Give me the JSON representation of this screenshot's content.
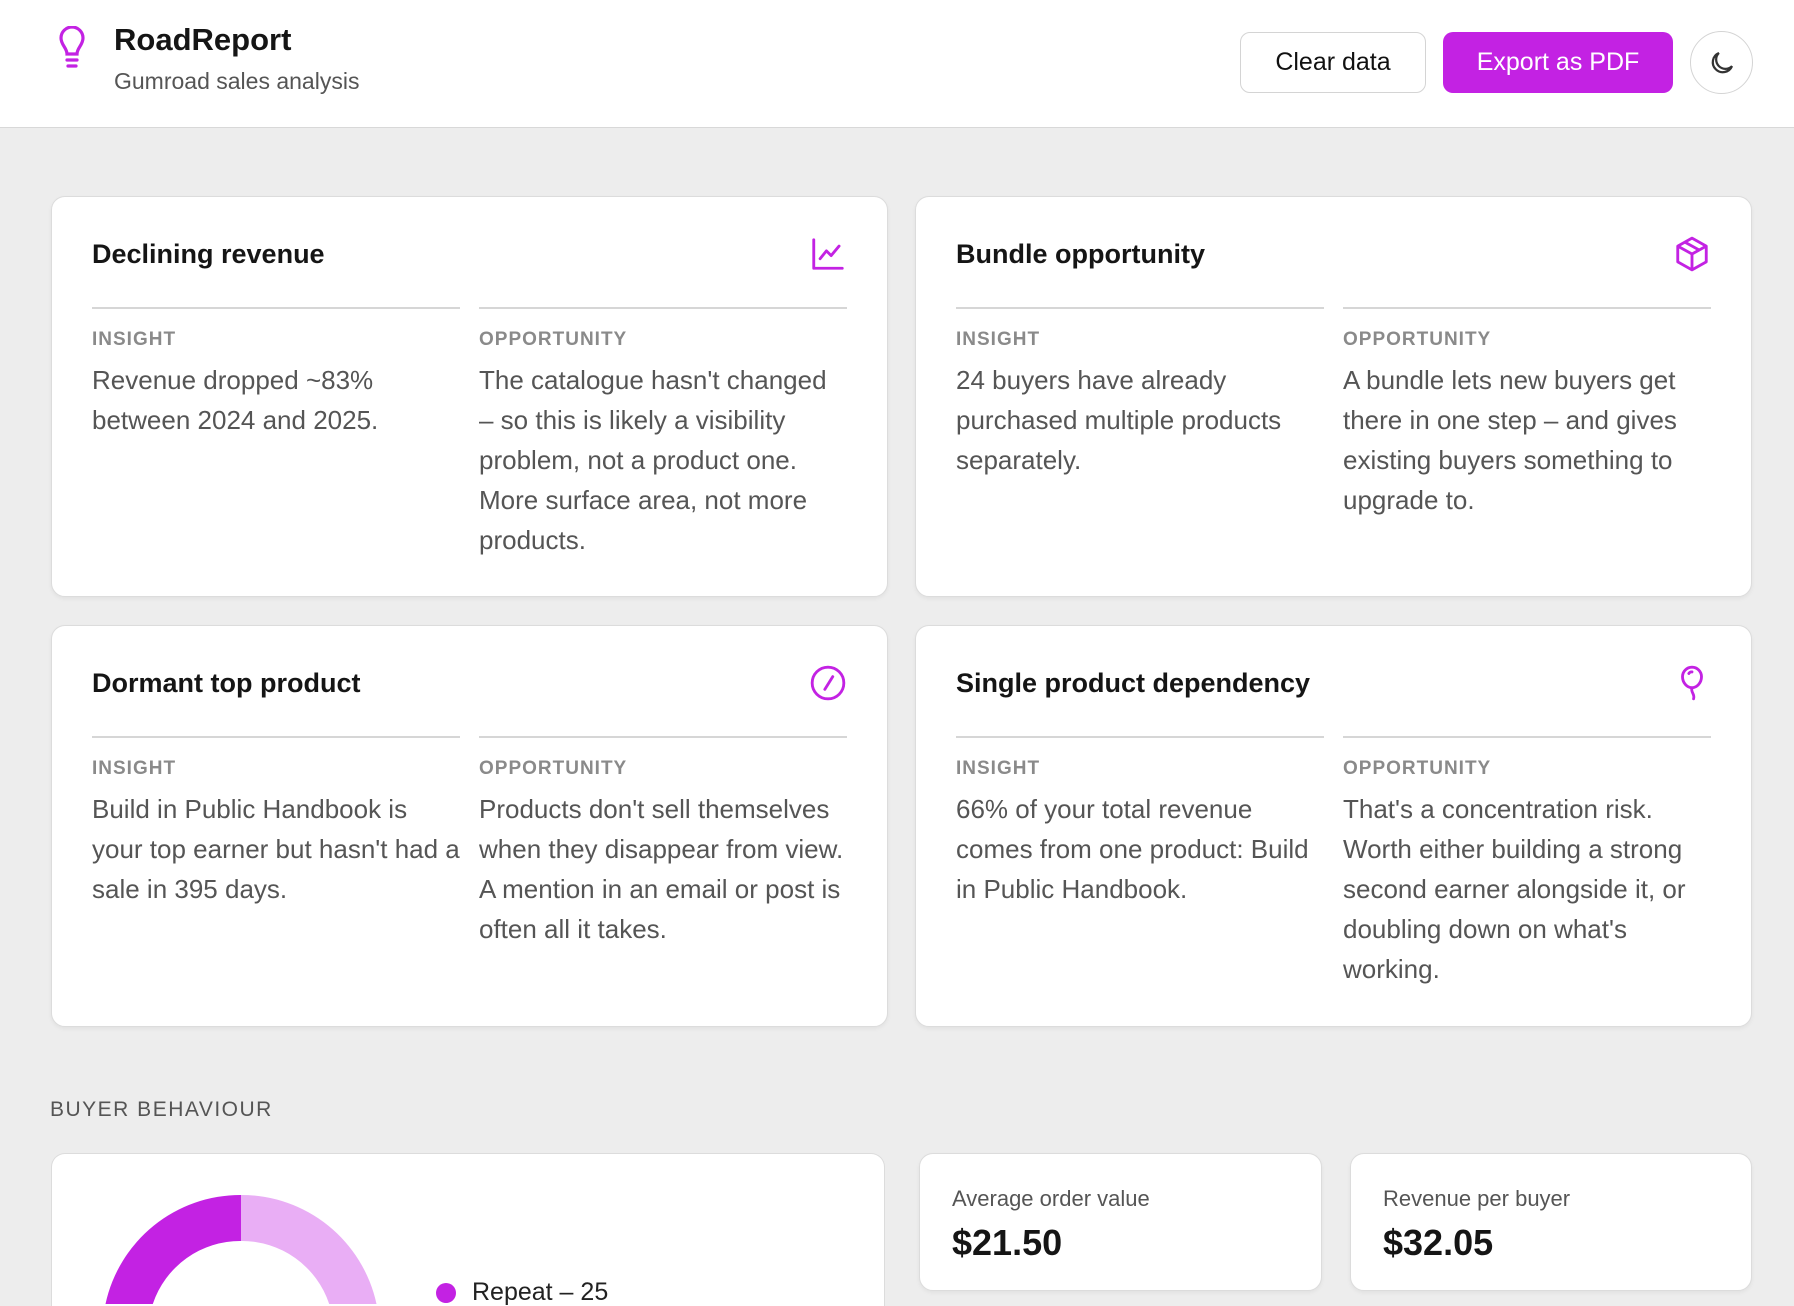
{
  "app": {
    "title": "RoadReport",
    "subtitle": "Gumroad sales analysis",
    "logo_icon": "lightbulb-icon"
  },
  "toolbar": {
    "clear_label": "Clear data",
    "export_label": "Export as PDF",
    "theme_icon": "moon-icon"
  },
  "colors": {
    "accent": "#c322e3",
    "accent_light": "#e9aef5",
    "background": "#ededed"
  },
  "cards": [
    {
      "title": "Declining revenue",
      "icon": "chart-line-icon",
      "insight_label": "INSIGHT",
      "insight": "Revenue dropped ~83% between 2024 and 2025.",
      "opportunity_label": "OPPORTUNITY",
      "opportunity": "The catalogue hasn't changed – so this is likely a visibility problem, not a product one. More surface area, not more products."
    },
    {
      "title": "Bundle opportunity",
      "icon": "package-icon",
      "insight_label": "INSIGHT",
      "insight": "24 buyers have already purchased multiple products separately.",
      "opportunity_label": "OPPORTUNITY",
      "opportunity": "A bundle lets new buyers get there in one step – and gives existing buyers something to upgrade to."
    },
    {
      "title": "Dormant top product",
      "icon": "gauge-icon",
      "insight_label": "INSIGHT",
      "insight": "Build in Public Handbook is your top earner but hasn't had a sale in 395 days.",
      "opportunity_label": "OPPORTUNITY",
      "opportunity": "Products don't sell themselves when they disappear from view. A mention in an email or post is often all it takes."
    },
    {
      "title": "Single product dependency",
      "icon": "balloon-icon",
      "insight_label": "INSIGHT",
      "insight": "66% of your total revenue comes from one product: Build in Public Handbook.",
      "opportunity_label": "OPPORTUNITY",
      "opportunity": "That's a concentration risk. Worth either building a strong second earner alongside it, or doubling down on what's working."
    }
  ],
  "buyer_behaviour": {
    "section_label": "BUYER BEHAVIOUR",
    "legend": [
      {
        "label": "Repeat – 25",
        "color": "#c322e3"
      }
    ],
    "stats": [
      {
        "label": "Average order value",
        "value": "$21.50"
      },
      {
        "label": "Revenue per buyer",
        "value": "$32.05"
      }
    ]
  }
}
